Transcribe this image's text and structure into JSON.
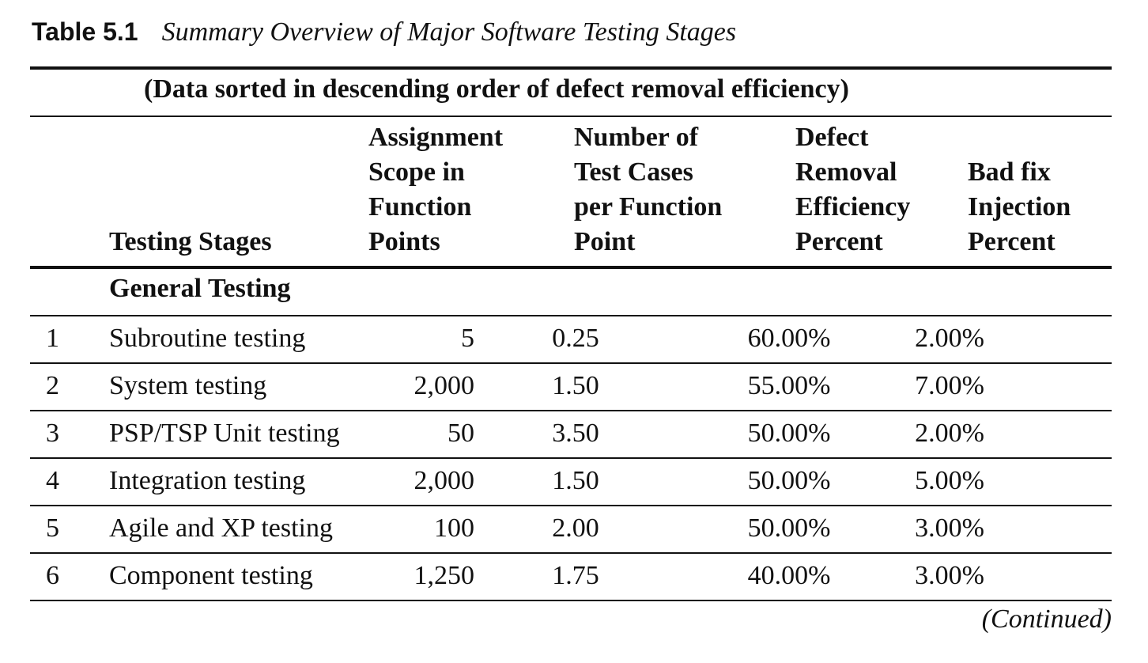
{
  "caption": {
    "label": "Table 5.1",
    "title": "Summary Overview of Major Software Testing Stages"
  },
  "subtitle": "(Data sorted in descending order of defect removal efficiency)",
  "columns": {
    "stages": [
      "Testing Stages"
    ],
    "scope": [
      "Assignment",
      "Scope in",
      "Function",
      "Points"
    ],
    "tests": [
      "Number of",
      "Test Cases",
      "per Function",
      "Point"
    ],
    "dre": [
      "Defect",
      "Removal",
      "Efficiency",
      "Percent"
    ],
    "badfix": [
      "Bad fix",
      "Injection",
      "Percent"
    ]
  },
  "section": "General Testing",
  "rows": [
    {
      "num": "1",
      "stage": "Subroutine testing",
      "scope": "5",
      "tests": "0.25",
      "dre": "60.00%",
      "badfix": "2.00%"
    },
    {
      "num": "2",
      "stage": "System testing",
      "scope": "2,000",
      "tests": "1.50",
      "dre": "55.00%",
      "badfix": "7.00%"
    },
    {
      "num": "3",
      "stage": "PSP/TSP Unit testing",
      "scope": "50",
      "tests": "3.50",
      "dre": "50.00%",
      "badfix": "2.00%"
    },
    {
      "num": "4",
      "stage": "Integration testing",
      "scope": "2,000",
      "tests": "1.50",
      "dre": "50.00%",
      "badfix": "5.00%"
    },
    {
      "num": "5",
      "stage": "Agile and XP testing",
      "scope": "100",
      "tests": "2.00",
      "dre": "50.00%",
      "badfix": "3.00%"
    },
    {
      "num": "6",
      "stage": "Component testing",
      "scope": "1,250",
      "tests": "1.75",
      "dre": "40.00%",
      "badfix": "3.00%"
    }
  ],
  "footer": "(Continued)"
}
